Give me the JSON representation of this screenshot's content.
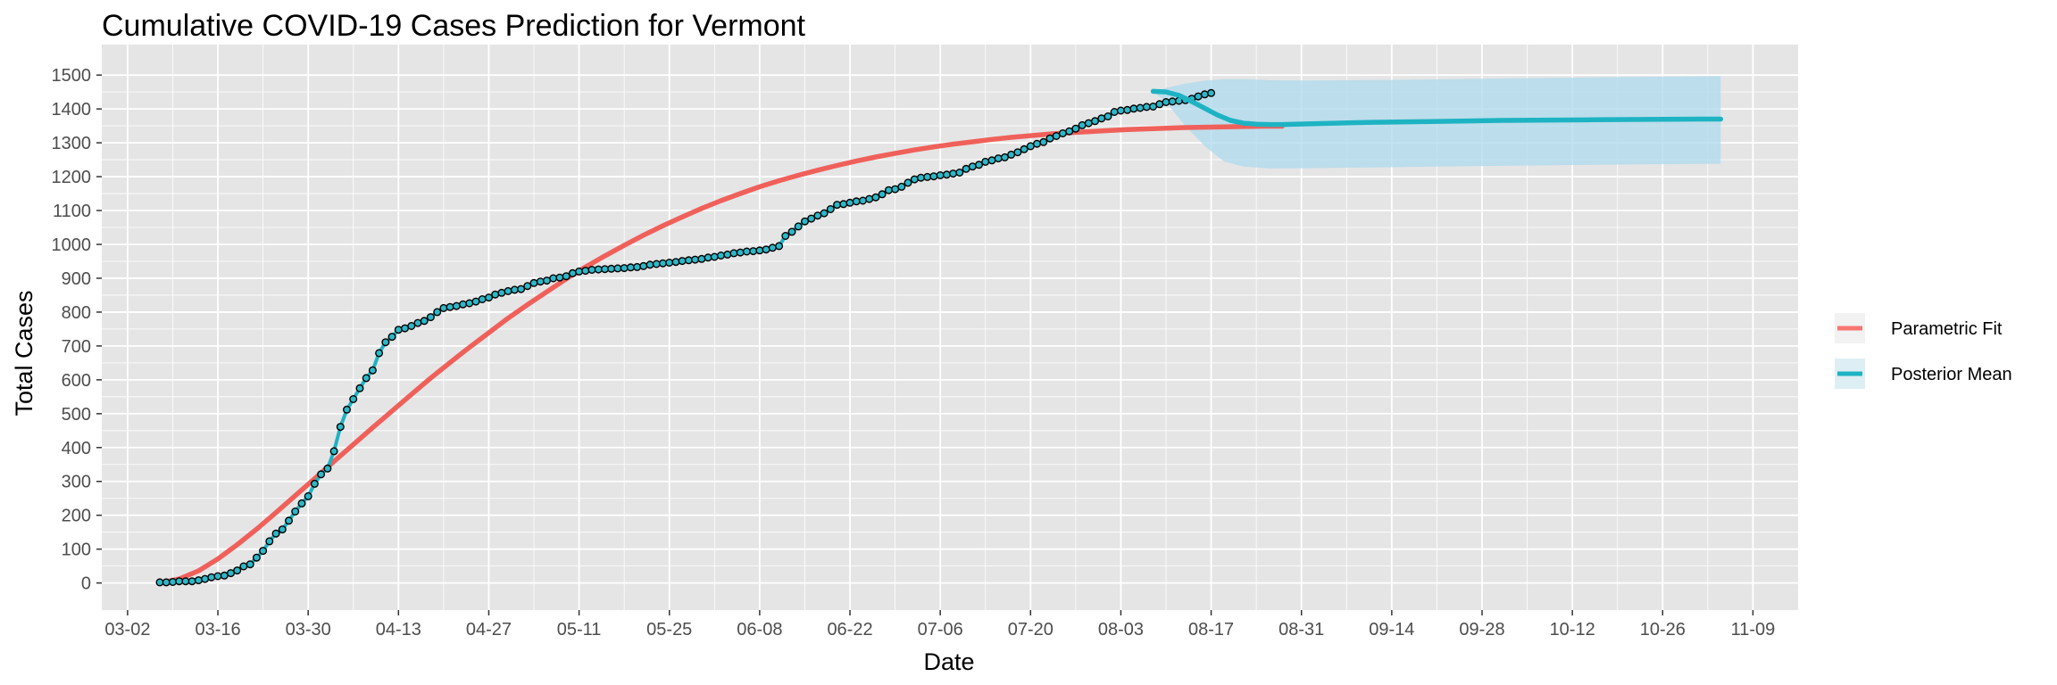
{
  "chart_data": {
    "type": "line",
    "title": "Cumulative COVID-19 Cases Prediction for Vermont",
    "xlabel": "Date",
    "ylabel": "Total Cases",
    "x_axis": {
      "type": "date",
      "range": [
        "2020-02-27",
        "2020-11-16"
      ],
      "ticks": [
        {
          "date": "2020-03-02",
          "label": "03-02"
        },
        {
          "date": "2020-03-16",
          "label": "03-16"
        },
        {
          "date": "2020-03-30",
          "label": "03-30"
        },
        {
          "date": "2020-04-13",
          "label": "04-13"
        },
        {
          "date": "2020-04-27",
          "label": "04-27"
        },
        {
          "date": "2020-05-11",
          "label": "05-11"
        },
        {
          "date": "2020-05-25",
          "label": "05-25"
        },
        {
          "date": "2020-06-08",
          "label": "06-08"
        },
        {
          "date": "2020-06-22",
          "label": "06-22"
        },
        {
          "date": "2020-07-06",
          "label": "07-06"
        },
        {
          "date": "2020-07-20",
          "label": "07-20"
        },
        {
          "date": "2020-08-03",
          "label": "08-03"
        },
        {
          "date": "2020-08-17",
          "label": "08-17"
        },
        {
          "date": "2020-08-31",
          "label": "08-31"
        },
        {
          "date": "2020-09-14",
          "label": "09-14"
        },
        {
          "date": "2020-09-28",
          "label": "09-28"
        },
        {
          "date": "2020-10-12",
          "label": "10-12"
        },
        {
          "date": "2020-10-26",
          "label": "10-26"
        },
        {
          "date": "2020-11-09",
          "label": "11-09"
        }
      ]
    },
    "y_axis": {
      "range": [
        -80,
        1590
      ],
      "ticks": [
        0,
        100,
        200,
        300,
        400,
        500,
        600,
        700,
        800,
        900,
        1000,
        1100,
        1200,
        1300,
        1400,
        1500
      ]
    },
    "grid": true,
    "legend": {
      "position": "right",
      "entries": [
        {
          "label": "Parametric Fit",
          "color": "#F8766D"
        },
        {
          "label": "Posterior Mean",
          "color": "#1EB3C3"
        }
      ]
    },
    "colors": {
      "panel": "#E5E5E5",
      "grid": "#FFFFFF",
      "parametric": "#F0605A",
      "posterior": "#1EB3C3",
      "ribbon": "#ADDAEC",
      "points_fill": "#2BB8C8",
      "points_stroke": "#000000"
    },
    "series": [
      {
        "name": "Parametric Fit",
        "kind": "line",
        "x": [
          "2020-03-07",
          "2020-03-10",
          "2020-03-13",
          "2020-03-16",
          "2020-03-19",
          "2020-03-22",
          "2020-03-25",
          "2020-03-28",
          "2020-03-31",
          "2020-04-03",
          "2020-04-06",
          "2020-04-09",
          "2020-04-12",
          "2020-04-15",
          "2020-04-18",
          "2020-04-21",
          "2020-04-24",
          "2020-04-27",
          "2020-04-30",
          "2020-05-03",
          "2020-05-06",
          "2020-05-09",
          "2020-05-12",
          "2020-05-15",
          "2020-05-18",
          "2020-05-21",
          "2020-05-24",
          "2020-05-27",
          "2020-05-30",
          "2020-06-02",
          "2020-06-05",
          "2020-06-08",
          "2020-06-11",
          "2020-06-14",
          "2020-06-17",
          "2020-06-20",
          "2020-06-23",
          "2020-06-26",
          "2020-06-29",
          "2020-07-02",
          "2020-07-05",
          "2020-07-08",
          "2020-07-11",
          "2020-07-14",
          "2020-07-17",
          "2020-07-20",
          "2020-07-23",
          "2020-07-26",
          "2020-07-29",
          "2020-08-01",
          "2020-08-04",
          "2020-08-07",
          "2020-08-10",
          "2020-08-13",
          "2020-08-16",
          "2020-08-19",
          "2020-08-22",
          "2020-08-25",
          "2020-08-28"
        ],
        "y": [
          0,
          12,
          36,
          71,
          113,
          159,
          208,
          258,
          308,
          359,
          409,
          459,
          508,
          557,
          605,
          651,
          696,
          739,
          782,
          822,
          860,
          898,
          933,
          966,
          997,
          1027,
          1055,
          1081,
          1106,
          1129,
          1150,
          1170,
          1188,
          1204,
          1219,
          1233,
          1246,
          1258,
          1269,
          1279,
          1288,
          1296,
          1303,
          1310,
          1316,
          1321,
          1326,
          1330,
          1333,
          1336,
          1339,
          1341,
          1343,
          1345,
          1346,
          1347,
          1348,
          1349,
          1349
        ]
      },
      {
        "name": "Posterior Mean",
        "kind": "line",
        "x": [
          "2020-08-08",
          "2020-08-10",
          "2020-08-12",
          "2020-08-14",
          "2020-08-16",
          "2020-08-18",
          "2020-08-20",
          "2020-08-22",
          "2020-08-24",
          "2020-08-26",
          "2020-08-28",
          "2020-08-30",
          "2020-09-03",
          "2020-09-10",
          "2020-09-20",
          "2020-10-01",
          "2020-10-15",
          "2020-11-01",
          "2020-11-04"
        ],
        "y": [
          1452,
          1450,
          1440,
          1422,
          1402,
          1382,
          1366,
          1358,
          1355,
          1354,
          1354,
          1355,
          1357,
          1360,
          1363,
          1366,
          1368,
          1370,
          1370
        ]
      },
      {
        "name": "Posterior Band",
        "kind": "ribbon",
        "x": [
          "2020-08-08",
          "2020-08-10",
          "2020-08-13",
          "2020-08-16",
          "2020-08-19",
          "2020-08-22",
          "2020-08-26",
          "2020-09-01",
          "2020-09-15",
          "2020-10-01",
          "2020-10-20",
          "2020-11-04"
        ],
        "upper": [
          1452,
          1462,
          1475,
          1484,
          1488,
          1488,
          1485,
          1484,
          1486,
          1490,
          1494,
          1497
        ],
        "lower": [
          1452,
          1420,
          1350,
          1290,
          1245,
          1230,
          1224,
          1225,
          1228,
          1232,
          1236,
          1238
        ]
      },
      {
        "name": "Observed",
        "kind": "points",
        "x_start": "2020-03-07",
        "y": [
          2,
          2,
          3,
          5,
          5,
          5,
          8,
          12,
          17,
          20,
          22,
          29,
          37,
          49,
          55,
          75,
          95,
          123,
          146,
          158,
          184,
          211,
          235,
          256,
          293,
          321,
          338,
          389,
          461,
          512,
          543,
          575,
          605,
          628,
          679,
          711,
          727,
          748,
          752,
          759,
          768,
          774,
          785,
          800,
          812,
          815,
          818,
          823,
          826,
          831,
          838,
          843,
          852,
          857,
          862,
          866,
          868,
          877,
          886,
          890,
          893,
          900,
          902,
          906,
          915,
          920,
          922,
          925,
          926,
          927,
          928,
          929,
          930,
          932,
          933,
          936,
          940,
          942,
          944,
          946,
          948,
          951,
          953,
          955,
          957,
          961,
          963,
          967,
          970,
          974,
          976,
          979,
          980,
          982,
          985,
          990,
          995,
          1025,
          1037,
          1053,
          1068,
          1076,
          1085,
          1092,
          1104,
          1117,
          1119,
          1123,
          1127,
          1129,
          1134,
          1139,
          1148,
          1160,
          1163,
          1170,
          1182,
          1192,
          1197,
          1199,
          1201,
          1204,
          1206,
          1209,
          1212,
          1223,
          1230,
          1235,
          1244,
          1248,
          1254,
          1257,
          1265,
          1272,
          1281,
          1290,
          1297,
          1302,
          1313,
          1320,
          1328,
          1334,
          1342,
          1352,
          1358,
          1364,
          1372,
          1378,
          1391,
          1395,
          1397,
          1401,
          1403,
          1406,
          1407,
          1414,
          1420,
          1422,
          1424,
          1426,
          1430,
          1437,
          1443,
          1447
        ]
      }
    ]
  }
}
